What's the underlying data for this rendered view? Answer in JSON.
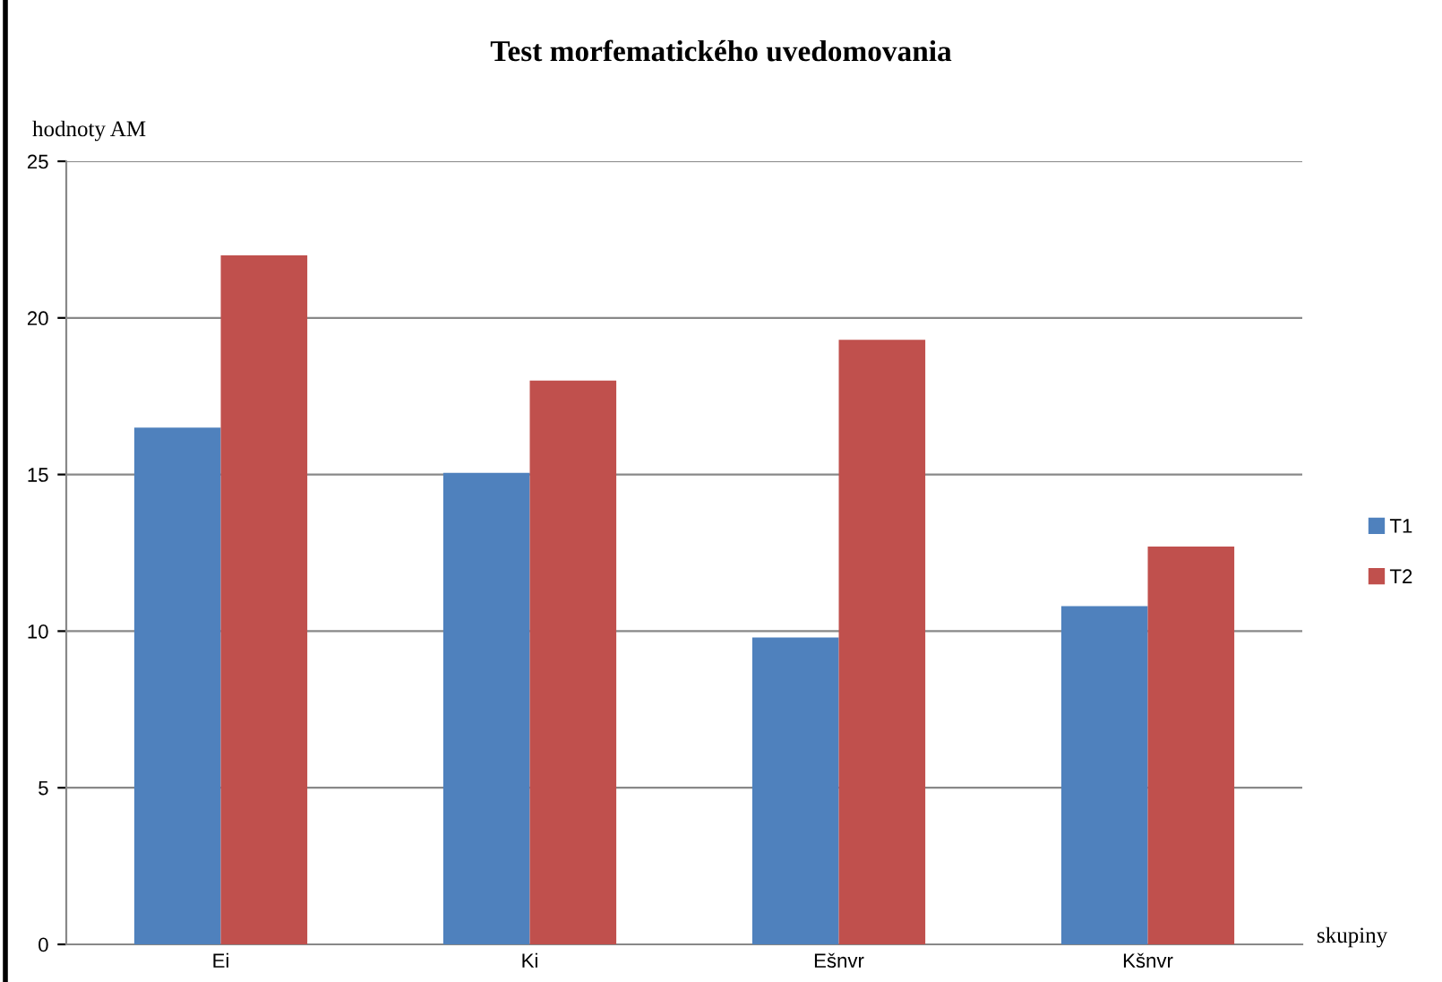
{
  "chart_data": {
    "type": "bar",
    "title": "Test morfematického uvedomovania",
    "xlabel": "skupiny",
    "ylabel": "hodnoty AM",
    "categories": [
      "Ei",
      "Ki",
      "Ešnvr",
      "Kšnvr"
    ],
    "series": [
      {
        "name": "T1",
        "color": "#4f81bd",
        "values": [
          16.5,
          15.05,
          9.8,
          10.8
        ]
      },
      {
        "name": "T2",
        "color": "#c0504d",
        "values": [
          22.0,
          18.0,
          19.3,
          12.7
        ]
      }
    ],
    "ylim": [
      0,
      25
    ],
    "yticks": [
      0,
      5,
      10,
      15,
      20,
      25
    ],
    "grid": "y",
    "legend": "right"
  }
}
